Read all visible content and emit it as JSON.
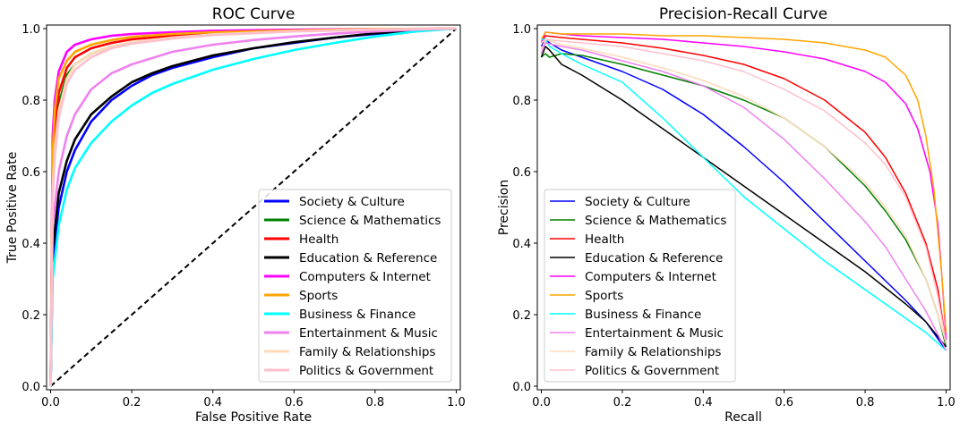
{
  "chart_data": [
    {
      "type": "line",
      "title": "ROC Curve",
      "xlabel": "False Positive Rate",
      "ylabel": "True Positive Rate",
      "xlim": [
        -0.01,
        1.01
      ],
      "ylim": [
        -0.01,
        1.01
      ],
      "xticks": [
        "0.0",
        "0.2",
        "0.4",
        "0.6",
        "0.8",
        "1.0"
      ],
      "yticks": [
        "0.0",
        "0.2",
        "0.4",
        "0.6",
        "0.8",
        "1.0"
      ],
      "legend_position": "bottom-right",
      "grid": false,
      "baseline": {
        "x": [
          0,
          1
        ],
        "y": [
          0,
          1
        ],
        "color": "#000000",
        "style": "dashed"
      },
      "series": [
        {
          "name": "Society & Culture",
          "color": "#0000ff",
          "x": [
            0,
            0.005,
            0.02,
            0.04,
            0.06,
            0.1,
            0.15,
            0.2,
            0.25,
            0.3,
            0.4,
            0.5,
            0.6,
            0.7,
            0.8,
            0.9,
            1.0
          ],
          "y": [
            0,
            0.35,
            0.5,
            0.6,
            0.66,
            0.74,
            0.8,
            0.84,
            0.87,
            0.89,
            0.92,
            0.945,
            0.96,
            0.975,
            0.985,
            0.995,
            1.0
          ]
        },
        {
          "name": "Science & Mathematics",
          "color": "#008000",
          "x": [
            0,
            0.005,
            0.01,
            0.02,
            0.04,
            0.06,
            0.1,
            0.15,
            0.2,
            0.3,
            0.4,
            0.5,
            0.6,
            0.8,
            1.0
          ],
          "y": [
            0,
            0.55,
            0.68,
            0.79,
            0.87,
            0.9,
            0.93,
            0.95,
            0.96,
            0.975,
            0.985,
            0.99,
            0.993,
            0.998,
            1.0
          ]
        },
        {
          "name": "Health",
          "color": "#ff0000",
          "x": [
            0,
            0.005,
            0.01,
            0.02,
            0.04,
            0.06,
            0.1,
            0.15,
            0.2,
            0.3,
            0.4,
            0.6,
            0.8,
            1.0
          ],
          "y": [
            0,
            0.6,
            0.72,
            0.82,
            0.89,
            0.92,
            0.945,
            0.96,
            0.97,
            0.98,
            0.987,
            0.994,
            0.998,
            1.0
          ]
        },
        {
          "name": "Education & Reference",
          "color": "#000000",
          "x": [
            0,
            0.005,
            0.02,
            0.04,
            0.06,
            0.1,
            0.15,
            0.2,
            0.25,
            0.3,
            0.4,
            0.5,
            0.6,
            0.7,
            0.8,
            0.9,
            1.0
          ],
          "y": [
            0,
            0.38,
            0.54,
            0.63,
            0.69,
            0.76,
            0.81,
            0.85,
            0.875,
            0.895,
            0.925,
            0.945,
            0.962,
            0.975,
            0.987,
            0.995,
            1.0
          ]
        },
        {
          "name": "Computers & Internet",
          "color": "#ff00ff",
          "x": [
            0,
            0.005,
            0.01,
            0.02,
            0.04,
            0.06,
            0.1,
            0.15,
            0.2,
            0.3,
            0.4,
            0.6,
            0.8,
            1.0
          ],
          "y": [
            0,
            0.7,
            0.8,
            0.88,
            0.935,
            0.955,
            0.97,
            0.98,
            0.985,
            0.99,
            0.994,
            0.997,
            0.999,
            1.0
          ]
        },
        {
          "name": "Sports",
          "color": "#ffa500",
          "x": [
            0,
            0.005,
            0.01,
            0.02,
            0.04,
            0.06,
            0.1,
            0.15,
            0.2,
            0.3,
            0.4,
            0.6,
            0.8,
            1.0
          ],
          "y": [
            0,
            0.65,
            0.77,
            0.86,
            0.91,
            0.935,
            0.955,
            0.968,
            0.977,
            0.985,
            0.99,
            0.995,
            0.999,
            1.0
          ]
        },
        {
          "name": "Business & Finance",
          "color": "#00ffff",
          "x": [
            0,
            0.005,
            0.02,
            0.04,
            0.06,
            0.1,
            0.15,
            0.2,
            0.25,
            0.3,
            0.4,
            0.5,
            0.6,
            0.7,
            0.8,
            0.9,
            1.0
          ],
          "y": [
            0,
            0.3,
            0.45,
            0.55,
            0.61,
            0.68,
            0.74,
            0.785,
            0.82,
            0.845,
            0.885,
            0.915,
            0.94,
            0.96,
            0.978,
            0.992,
            1.0
          ]
        },
        {
          "name": "Entertainment & Music",
          "color": "#ee82ee",
          "x": [
            0,
            0.005,
            0.02,
            0.04,
            0.06,
            0.1,
            0.15,
            0.2,
            0.3,
            0.4,
            0.5,
            0.6,
            0.7,
            0.8,
            0.9,
            1.0
          ],
          "y": [
            0,
            0.45,
            0.6,
            0.7,
            0.76,
            0.83,
            0.875,
            0.9,
            0.935,
            0.955,
            0.968,
            0.978,
            0.986,
            0.992,
            0.997,
            1.0
          ]
        },
        {
          "name": "Family & Relationships",
          "color": "#ffdab9",
          "x": [
            0,
            0.005,
            0.01,
            0.02,
            0.04,
            0.06,
            0.1,
            0.15,
            0.2,
            0.3,
            0.4,
            0.6,
            0.8,
            1.0
          ],
          "y": [
            0,
            0.55,
            0.66,
            0.77,
            0.86,
            0.9,
            0.93,
            0.95,
            0.962,
            0.975,
            0.984,
            0.993,
            0.998,
            1.0
          ]
        },
        {
          "name": "Politics & Government",
          "color": "#ffc0cb",
          "x": [
            0,
            0.005,
            0.01,
            0.02,
            0.04,
            0.06,
            0.1,
            0.15,
            0.2,
            0.3,
            0.4,
            0.6,
            0.8,
            1.0
          ],
          "y": [
            0,
            0.52,
            0.64,
            0.75,
            0.845,
            0.885,
            0.92,
            0.945,
            0.958,
            0.972,
            0.982,
            0.992,
            0.997,
            1.0
          ]
        }
      ]
    },
    {
      "type": "line",
      "title": "Precision-Recall Curve",
      "xlabel": "Recall",
      "ylabel": "Precision",
      "xlim": [
        -0.01,
        1.01
      ],
      "ylim": [
        -0.01,
        1.01
      ],
      "xticks": [
        "0.0",
        "0.2",
        "0.4",
        "0.6",
        "0.8",
        "1.0"
      ],
      "yticks": [
        "0.0",
        "0.2",
        "0.4",
        "0.6",
        "0.8",
        "1.0"
      ],
      "legend_position": "bottom-left",
      "grid": false,
      "series": [
        {
          "name": "Society & Culture",
          "color": "#0000ff",
          "x": [
            0,
            0.01,
            0.02,
            0.05,
            0.1,
            0.2,
            0.3,
            0.4,
            0.5,
            0.6,
            0.7,
            0.8,
            0.9,
            0.95,
            1.0
          ],
          "y": [
            0.95,
            0.97,
            0.96,
            0.94,
            0.92,
            0.88,
            0.83,
            0.76,
            0.67,
            0.57,
            0.46,
            0.35,
            0.24,
            0.18,
            0.1
          ]
        },
        {
          "name": "Science & Mathematics",
          "color": "#008000",
          "x": [
            0,
            0.01,
            0.02,
            0.05,
            0.1,
            0.2,
            0.3,
            0.4,
            0.5,
            0.6,
            0.7,
            0.8,
            0.85,
            0.9,
            0.95,
            0.98,
            1.0
          ],
          "y": [
            0.92,
            0.93,
            0.92,
            0.93,
            0.925,
            0.9,
            0.87,
            0.84,
            0.8,
            0.75,
            0.67,
            0.56,
            0.49,
            0.41,
            0.3,
            0.2,
            0.11
          ]
        },
        {
          "name": "Health",
          "color": "#ff0000",
          "x": [
            0,
            0.01,
            0.05,
            0.1,
            0.2,
            0.3,
            0.4,
            0.5,
            0.6,
            0.7,
            0.8,
            0.85,
            0.9,
            0.95,
            0.98,
            1.0
          ],
          "y": [
            0.96,
            0.98,
            0.975,
            0.97,
            0.96,
            0.945,
            0.925,
            0.9,
            0.86,
            0.8,
            0.71,
            0.64,
            0.54,
            0.4,
            0.27,
            0.12
          ]
        },
        {
          "name": "Education & Reference",
          "color": "#000000",
          "x": [
            0,
            0.01,
            0.02,
            0.05,
            0.1,
            0.2,
            0.3,
            0.4,
            0.5,
            0.6,
            0.7,
            0.8,
            0.9,
            0.95,
            1.0
          ],
          "y": [
            0.92,
            0.95,
            0.94,
            0.9,
            0.87,
            0.8,
            0.72,
            0.64,
            0.56,
            0.48,
            0.4,
            0.32,
            0.23,
            0.18,
            0.11
          ]
        },
        {
          "name": "Computers & Internet",
          "color": "#ff00ff",
          "x": [
            0,
            0.01,
            0.05,
            0.1,
            0.2,
            0.3,
            0.4,
            0.5,
            0.6,
            0.7,
            0.8,
            0.85,
            0.9,
            0.93,
            0.96,
            0.98,
            0.99,
            1.0
          ],
          "y": [
            0.96,
            0.99,
            0.985,
            0.98,
            0.975,
            0.97,
            0.96,
            0.95,
            0.935,
            0.915,
            0.88,
            0.85,
            0.79,
            0.72,
            0.6,
            0.45,
            0.3,
            0.13
          ]
        },
        {
          "name": "Sports",
          "color": "#ffa500",
          "x": [
            0,
            0.01,
            0.05,
            0.1,
            0.2,
            0.3,
            0.4,
            0.5,
            0.6,
            0.7,
            0.8,
            0.85,
            0.9,
            0.93,
            0.95,
            0.97,
            0.99,
            1.0
          ],
          "y": [
            0.97,
            0.99,
            0.985,
            0.985,
            0.985,
            0.98,
            0.98,
            0.975,
            0.97,
            0.96,
            0.94,
            0.92,
            0.87,
            0.8,
            0.7,
            0.55,
            0.3,
            0.15
          ]
        },
        {
          "name": "Business & Finance",
          "color": "#00ffff",
          "x": [
            0,
            0.01,
            0.02,
            0.05,
            0.1,
            0.2,
            0.3,
            0.4,
            0.5,
            0.6,
            0.7,
            0.8,
            0.9,
            0.95,
            1.0
          ],
          "y": [
            0.97,
            0.97,
            0.95,
            0.93,
            0.9,
            0.85,
            0.75,
            0.64,
            0.53,
            0.44,
            0.35,
            0.27,
            0.19,
            0.15,
            0.1
          ]
        },
        {
          "name": "Entertainment & Music",
          "color": "#ee82ee",
          "x": [
            0,
            0.01,
            0.05,
            0.1,
            0.2,
            0.3,
            0.4,
            0.5,
            0.6,
            0.7,
            0.8,
            0.85,
            0.9,
            0.95,
            1.0
          ],
          "y": [
            0.93,
            0.96,
            0.95,
            0.94,
            0.91,
            0.88,
            0.84,
            0.78,
            0.69,
            0.58,
            0.46,
            0.39,
            0.3,
            0.21,
            0.1
          ]
        },
        {
          "name": "Family & Relationships",
          "color": "#ffdab9",
          "x": [
            0,
            0.01,
            0.05,
            0.1,
            0.2,
            0.3,
            0.4,
            0.5,
            0.6,
            0.7,
            0.8,
            0.85,
            0.9,
            0.95,
            0.98,
            1.0
          ],
          "y": [
            0.96,
            0.97,
            0.955,
            0.945,
            0.92,
            0.89,
            0.855,
            0.81,
            0.75,
            0.67,
            0.57,
            0.5,
            0.42,
            0.3,
            0.2,
            0.12
          ]
        },
        {
          "name": "Politics & Government",
          "color": "#ffc0cb",
          "x": [
            0,
            0.01,
            0.05,
            0.1,
            0.2,
            0.3,
            0.4,
            0.5,
            0.6,
            0.7,
            0.8,
            0.85,
            0.9,
            0.95,
            0.98,
            1.0
          ],
          "y": [
            0.94,
            0.97,
            0.965,
            0.96,
            0.95,
            0.93,
            0.91,
            0.88,
            0.83,
            0.77,
            0.68,
            0.62,
            0.53,
            0.39,
            0.25,
            0.12
          ]
        }
      ]
    }
  ]
}
